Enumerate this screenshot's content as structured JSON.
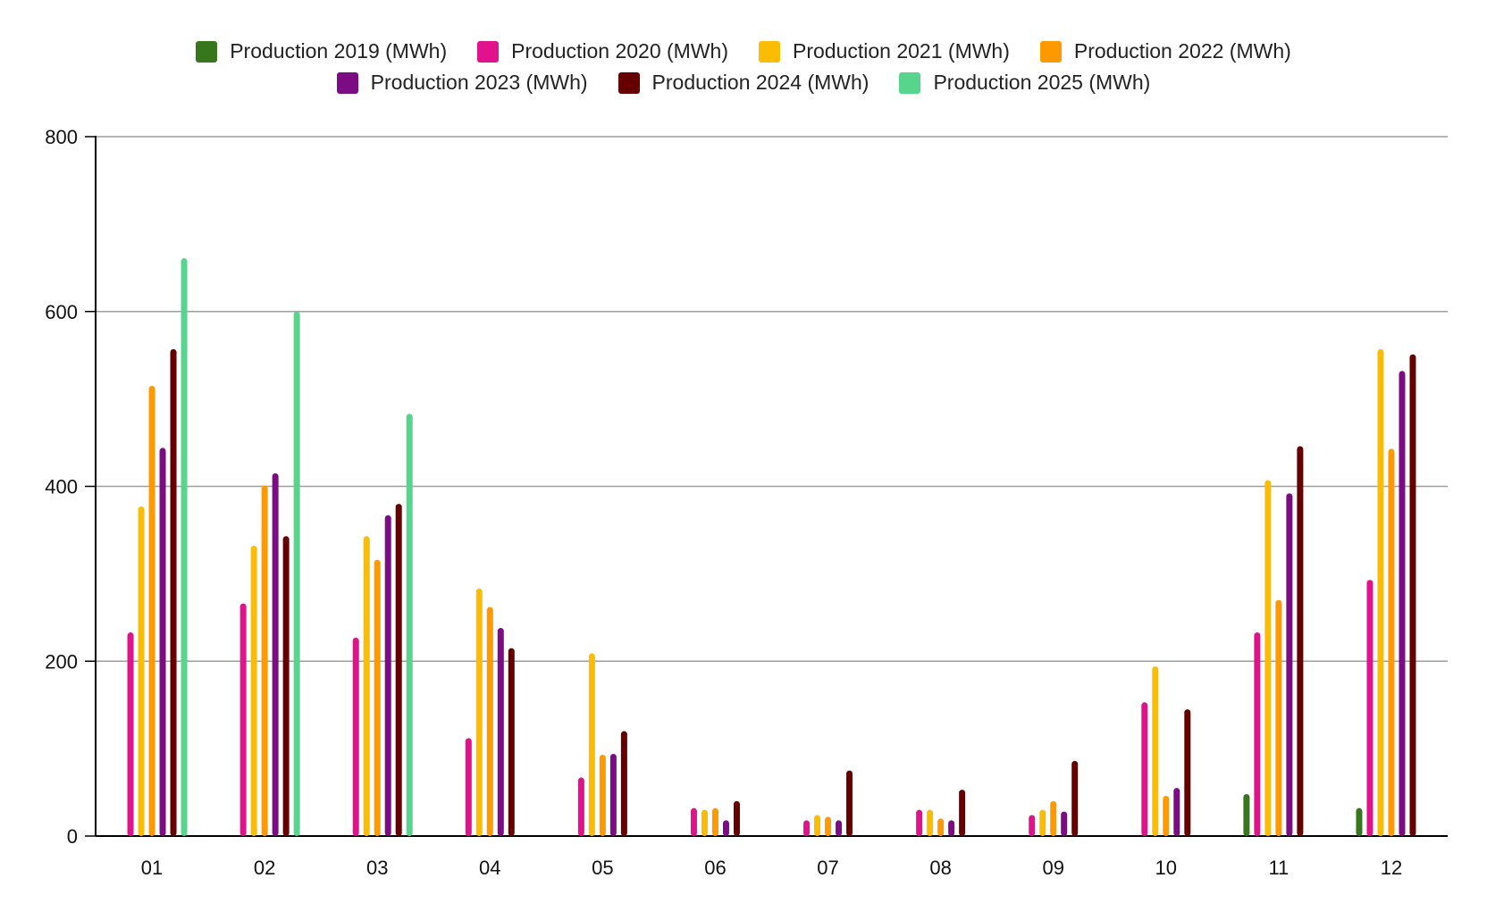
{
  "chart_data": {
    "type": "bar",
    "title": "",
    "xlabel": "",
    "ylabel": "",
    "ylim": [
      0,
      800
    ],
    "yticks": [
      0,
      200,
      400,
      600,
      800
    ],
    "grid": true,
    "legend_position": "top",
    "categories": [
      "01",
      "02",
      "03",
      "04",
      "05",
      "06",
      "07",
      "08",
      "09",
      "10",
      "11",
      "12"
    ],
    "series": [
      {
        "name": "Production 2019 (MWh)",
        "color": "#38761d",
        "values": [
          null,
          null,
          null,
          null,
          null,
          null,
          null,
          null,
          null,
          null,
          48,
          32
        ]
      },
      {
        "name": "Production 2020 (MWh)",
        "color": "#e0138c",
        "values": [
          233,
          266,
          227,
          112,
          67,
          32,
          18,
          30,
          24,
          153,
          233,
          293
        ]
      },
      {
        "name": "Production 2021 (MWh)",
        "color": "#fbbc04",
        "values": [
          377,
          332,
          343,
          283,
          209,
          30,
          24,
          30,
          30,
          194,
          407,
          557
        ]
      },
      {
        "name": "Production 2022 (MWh)",
        "color": "#ff9900",
        "values": [
          515,
          401,
          316,
          262,
          93,
          32,
          22,
          20,
          40,
          46,
          270,
          443
        ]
      },
      {
        "name": "Production 2023 (MWh)",
        "color": "#7b0c83",
        "values": [
          444,
          415,
          367,
          238,
          94,
          18,
          18,
          18,
          28,
          55,
          392,
          532
        ]
      },
      {
        "name": "Production 2024 (MWh)",
        "color": "#660000",
        "values": [
          557,
          343,
          380,
          215,
          120,
          40,
          75,
          53,
          86,
          145,
          446,
          551
        ]
      },
      {
        "name": "Production 2025 (MWh)",
        "color": "#57d58c",
        "values": [
          661,
          600,
          483,
          null,
          null,
          null,
          null,
          null,
          null,
          null,
          null,
          null
        ]
      }
    ]
  }
}
